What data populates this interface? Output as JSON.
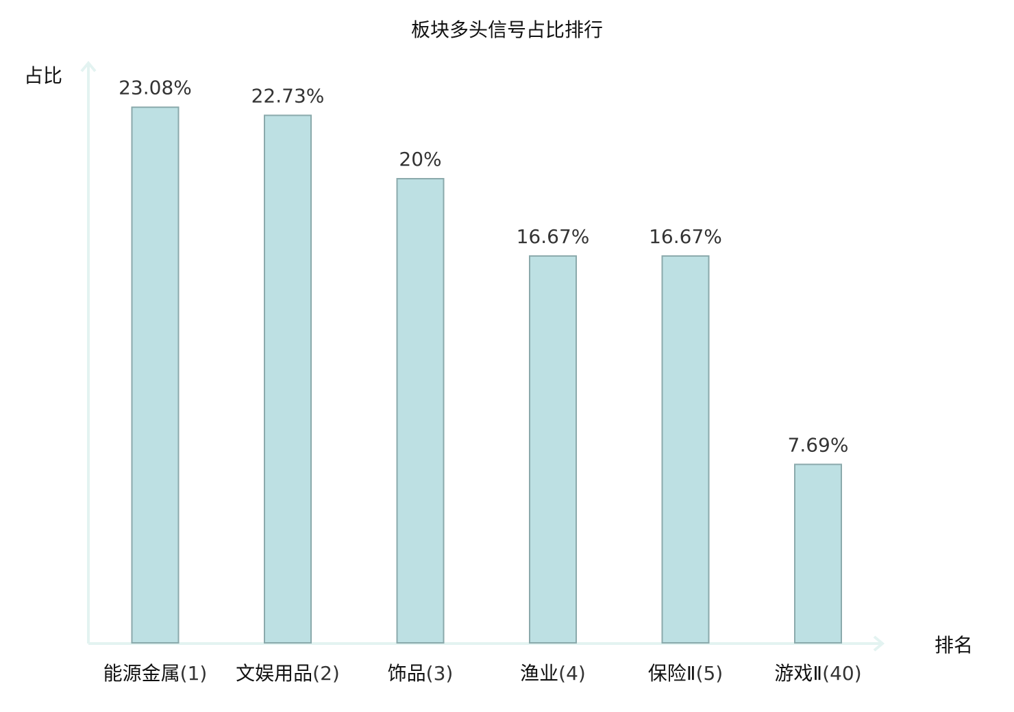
{
  "chart_data": {
    "type": "bar",
    "title": "板块多头信号占比排行",
    "ylabel": "占比",
    "xlabel": "排名",
    "ylim": [
      0,
      25
    ],
    "categories": [
      {
        "name": "能源金属",
        "rank": "(1)",
        "highlight": false
      },
      {
        "name": "文娱用品",
        "rank": "(2)",
        "highlight": false
      },
      {
        "name": "饰品",
        "rank": "(3)",
        "highlight": false
      },
      {
        "name": "渔业",
        "rank": "(4)",
        "highlight": false
      },
      {
        "name": "保险Ⅱ",
        "rank": "(5)",
        "highlight": false
      },
      {
        "name": "游戏Ⅱ",
        "rank": "(40)",
        "highlight": true
      }
    ],
    "values": [
      23.08,
      22.73,
      20,
      16.67,
      16.67,
      7.69
    ],
    "value_labels": [
      "23.08%",
      "22.73%",
      "20%",
      "16.67%",
      "16.67%",
      "7.69%"
    ],
    "grid": false,
    "legend": "none"
  },
  "colors": {
    "bar_fill": "#bde0e3",
    "bar_stroke": "#8aa9ab",
    "axis": "#e3f3f1",
    "highlight": "#e01b1b"
  }
}
